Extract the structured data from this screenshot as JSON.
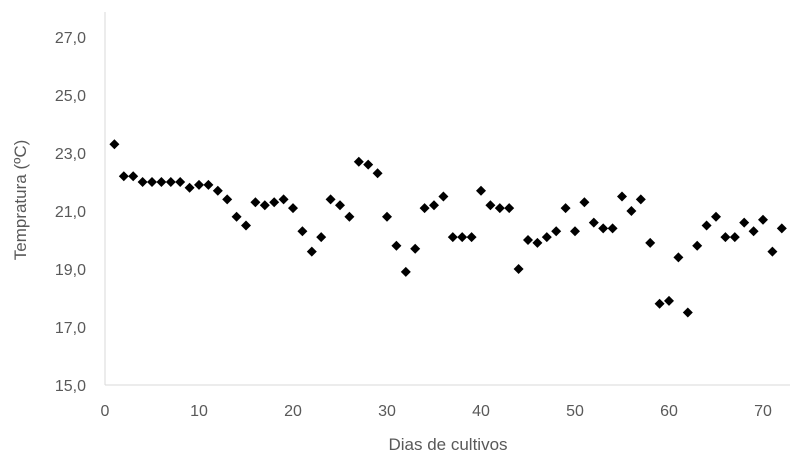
{
  "chart_data": {
    "type": "scatter",
    "xlabel": "Dias de cultivos",
    "ylabel": "Tempratura (ºC)",
    "xlim": [
      0,
      72
    ],
    "ylim": [
      15,
      28
    ],
    "x_ticks": [
      0,
      10,
      20,
      30,
      40,
      50,
      60,
      70
    ],
    "y_ticks": [
      15,
      17,
      19,
      21,
      23,
      25,
      27
    ],
    "y_tick_labels": [
      "15,0",
      "17,0",
      "19,0",
      "21,0",
      "23,0",
      "25,0",
      "27,0"
    ],
    "grid": false,
    "marker": "diamond",
    "marker_color": "#000000",
    "points": [
      [
        1,
        23.3
      ],
      [
        2,
        22.2
      ],
      [
        3,
        22.2
      ],
      [
        4,
        22.0
      ],
      [
        5,
        22.0
      ],
      [
        6,
        22.0
      ],
      [
        7,
        22.0
      ],
      [
        8,
        22.0
      ],
      [
        9,
        21.8
      ],
      [
        10,
        21.9
      ],
      [
        11,
        21.9
      ],
      [
        12,
        21.7
      ],
      [
        13,
        21.4
      ],
      [
        14,
        20.8
      ],
      [
        15,
        20.5
      ],
      [
        16,
        21.3
      ],
      [
        17,
        21.2
      ],
      [
        18,
        21.3
      ],
      [
        19,
        21.4
      ],
      [
        20,
        21.1
      ],
      [
        21,
        20.3
      ],
      [
        22,
        19.6
      ],
      [
        23,
        20.1
      ],
      [
        24,
        21.4
      ],
      [
        25,
        21.2
      ],
      [
        26,
        20.8
      ],
      [
        27,
        22.7
      ],
      [
        28,
        22.6
      ],
      [
        29,
        22.3
      ],
      [
        30,
        20.8
      ],
      [
        31,
        19.8
      ],
      [
        32,
        18.9
      ],
      [
        33,
        19.7
      ],
      [
        34,
        21.1
      ],
      [
        35,
        21.2
      ],
      [
        36,
        21.5
      ],
      [
        37,
        20.1
      ],
      [
        38,
        20.1
      ],
      [
        39,
        20.1
      ],
      [
        40,
        21.7
      ],
      [
        41,
        21.2
      ],
      [
        42,
        21.1
      ],
      [
        43,
        21.1
      ],
      [
        44,
        19.0
      ],
      [
        45,
        20.0
      ],
      [
        46,
        19.9
      ],
      [
        47,
        20.1
      ],
      [
        48,
        20.3
      ],
      [
        49,
        21.1
      ],
      [
        50,
        20.3
      ],
      [
        51,
        21.3
      ],
      [
        52,
        20.6
      ],
      [
        53,
        20.4
      ],
      [
        54,
        20.4
      ],
      [
        55,
        21.5
      ],
      [
        56,
        21.0
      ],
      [
        57,
        21.4
      ],
      [
        58,
        19.9
      ],
      [
        59,
        17.8
      ],
      [
        60,
        17.9
      ],
      [
        61,
        19.4
      ],
      [
        62,
        17.5
      ],
      [
        63,
        19.8
      ],
      [
        64,
        20.5
      ],
      [
        65,
        20.8
      ],
      [
        66,
        20.1
      ],
      [
        67,
        20.1
      ],
      [
        68,
        20.6
      ],
      [
        69,
        20.3
      ],
      [
        70,
        20.7
      ],
      [
        71,
        19.6
      ],
      [
        72,
        20.4
      ]
    ]
  }
}
